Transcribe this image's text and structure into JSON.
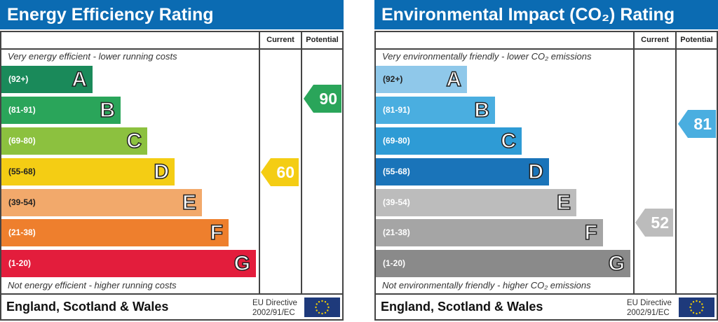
{
  "chart_data": [
    {
      "type": "bar",
      "title": "Energy Efficiency Rating",
      "columns": [
        "Current",
        "Potential"
      ],
      "top_note": "Very energy efficient - lower running costs",
      "bottom_note": "Not energy efficient - higher running costs",
      "bands": [
        {
          "range": "(92+)",
          "letter": "A",
          "color": "#1a8a5a"
        },
        {
          "range": "(81-91)",
          "letter": "B",
          "color": "#2aa55a"
        },
        {
          "range": "(69-80)",
          "letter": "C",
          "color": "#8cc13f"
        },
        {
          "range": "(55-68)",
          "letter": "D",
          "color": "#f4cd14"
        },
        {
          "range": "(39-54)",
          "letter": "E",
          "color": "#f2a96b"
        },
        {
          "range": "(21-38)",
          "letter": "F",
          "color": "#ee7f2d"
        },
        {
          "range": "(1-20)",
          "letter": "G",
          "color": "#e31d3c"
        }
      ],
      "current": {
        "value": 60,
        "band": "D",
        "color": "#f4cd14"
      },
      "potential": {
        "value": 90,
        "band": "B",
        "color": "#2aa55a"
      },
      "footer": "England, Scotland & Wales",
      "directive": [
        "EU Directive",
        "2002/91/EC"
      ]
    },
    {
      "type": "bar",
      "title": "Environmental Impact (CO₂) Rating",
      "columns": [
        "Current",
        "Potential"
      ],
      "top_note": "Very environmentally friendly - lower CO₂ emissions",
      "bottom_note": "Not environmentally friendly - higher CO₂ emissions",
      "bands": [
        {
          "range": "(92+)",
          "letter": "A",
          "color": "#8fc8ea"
        },
        {
          "range": "(81-91)",
          "letter": "B",
          "color": "#4aaee0"
        },
        {
          "range": "(69-80)",
          "letter": "C",
          "color": "#2e9bd5"
        },
        {
          "range": "(55-68)",
          "letter": "D",
          "color": "#1a74b9"
        },
        {
          "range": "(39-54)",
          "letter": "E",
          "color": "#bcbcbc"
        },
        {
          "range": "(21-38)",
          "letter": "F",
          "color": "#a5a5a5"
        },
        {
          "range": "(1-20)",
          "letter": "G",
          "color": "#8a8a8a"
        }
      ],
      "current": {
        "value": 52,
        "band": "E",
        "color": "#bcbcbc"
      },
      "potential": {
        "value": 81,
        "band": "B",
        "color": "#4aaee0"
      },
      "footer": "England, Scotland & Wales",
      "directive": [
        "EU Directive",
        "2002/91/EC"
      ]
    }
  ]
}
